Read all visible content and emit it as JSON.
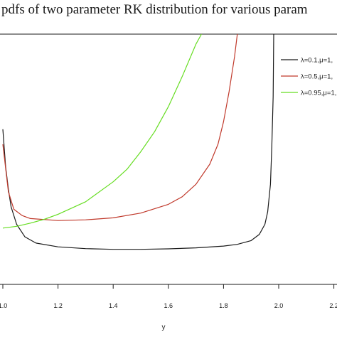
{
  "chart_data": {
    "type": "line",
    "title": "pdfs of two parameter RK distribution for various param",
    "xlabel": "y",
    "ylabel": "",
    "xlim": [
      1.0,
      2.2
    ],
    "x_ticks": [
      "1.0",
      "1.2",
      "1.4",
      "1.6",
      "1.8",
      "2.0",
      "2.2"
    ],
    "legend_position": "top-right",
    "grid": false,
    "series": [
      {
        "name": "λ=0.1,μ=1,",
        "color": "#1a1a1a",
        "points": [
          [
            1.0,
            0.62
          ],
          [
            1.01,
            0.47
          ],
          [
            1.02,
            0.38
          ],
          [
            1.03,
            0.31
          ],
          [
            1.05,
            0.24
          ],
          [
            1.08,
            0.19
          ],
          [
            1.12,
            0.165
          ],
          [
            1.2,
            0.15
          ],
          [
            1.3,
            0.143
          ],
          [
            1.4,
            0.14
          ],
          [
            1.5,
            0.14
          ],
          [
            1.6,
            0.142
          ],
          [
            1.7,
            0.146
          ],
          [
            1.8,
            0.153
          ],
          [
            1.85,
            0.16
          ],
          [
            1.9,
            0.175
          ],
          [
            1.93,
            0.2
          ],
          [
            1.95,
            0.24
          ],
          [
            1.96,
            0.29
          ],
          [
            1.97,
            0.4
          ],
          [
            1.975,
            0.55
          ],
          [
            1.98,
            0.75
          ],
          [
            1.982,
            1.0
          ]
        ]
      },
      {
        "name": "λ=0.5,μ=1,",
        "color": "#c0392b",
        "points": [
          [
            1.0,
            0.56
          ],
          [
            1.02,
            0.37
          ],
          [
            1.04,
            0.3
          ],
          [
            1.07,
            0.275
          ],
          [
            1.1,
            0.263
          ],
          [
            1.2,
            0.255
          ],
          [
            1.3,
            0.258
          ],
          [
            1.4,
            0.266
          ],
          [
            1.5,
            0.285
          ],
          [
            1.6,
            0.32
          ],
          [
            1.65,
            0.35
          ],
          [
            1.7,
            0.4
          ],
          [
            1.75,
            0.48
          ],
          [
            1.78,
            0.56
          ],
          [
            1.8,
            0.65
          ],
          [
            1.82,
            0.77
          ],
          [
            1.84,
            0.91
          ],
          [
            1.85,
            1.0
          ]
        ]
      },
      {
        "name": "λ=0.95,μ=1,",
        "color": "#66dd22",
        "points": [
          [
            1.0,
            0.225
          ],
          [
            1.05,
            0.232
          ],
          [
            1.1,
            0.245
          ],
          [
            1.15,
            0.26
          ],
          [
            1.2,
            0.28
          ],
          [
            1.3,
            0.33
          ],
          [
            1.4,
            0.41
          ],
          [
            1.45,
            0.46
          ],
          [
            1.5,
            0.53
          ],
          [
            1.55,
            0.61
          ],
          [
            1.6,
            0.71
          ],
          [
            1.65,
            0.83
          ],
          [
            1.7,
            0.96
          ],
          [
            1.72,
            1.0
          ]
        ]
      }
    ]
  }
}
